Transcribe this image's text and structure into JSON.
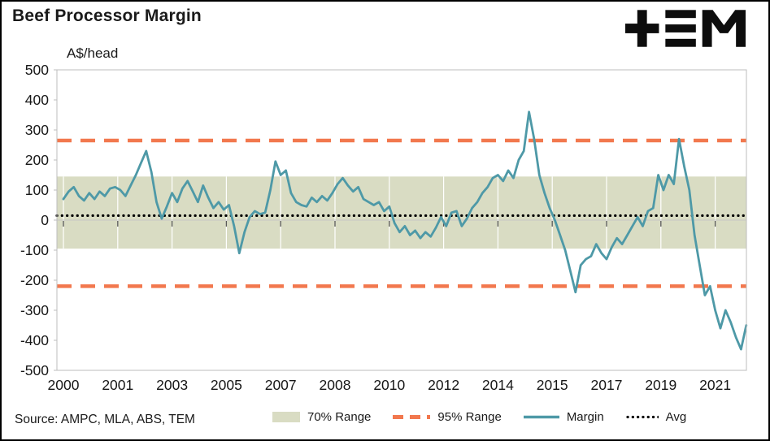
{
  "header": {
    "title": "Beef Processor Margin",
    "logo_name": "TEM"
  },
  "chart_data": {
    "type": "line",
    "title": "Beef Processor Margin",
    "ylabel": "A$/head",
    "ylim": [
      -500,
      500
    ],
    "yticks": [
      500,
      400,
      300,
      200,
      100,
      0,
      -100,
      -200,
      -300,
      -400,
      -500
    ],
    "xticks": [
      2000,
      2001,
      2003,
      2005,
      2007,
      2008,
      2010,
      2012,
      2014,
      2015,
      2017,
      2019,
      2021
    ],
    "x_tick_interval_years": 1.75,
    "grid": false,
    "legend_position": "bottom",
    "colors": {
      "band": "#d9dcc3",
      "range95": "#f2784e",
      "margin": "#4e99a7",
      "avg": "#000000"
    },
    "bands": [
      {
        "name": "70% Range",
        "from": -95,
        "to": 145,
        "color": "#d9dcc3"
      }
    ],
    "ref_lines": [
      {
        "name": "95% Range",
        "style": "dashed",
        "color": "#f2784e",
        "values": [
          265,
          -220
        ]
      },
      {
        "name": "Avg",
        "style": "dotted",
        "color": "#000000",
        "values": [
          15
        ]
      }
    ],
    "series": [
      {
        "name": "Margin",
        "color": "#4e99a7",
        "x_start": 2000,
        "x_step_years": 0.16667,
        "values": [
          70,
          95,
          110,
          80,
          65,
          90,
          70,
          95,
          80,
          105,
          110,
          100,
          80,
          115,
          150,
          190,
          230,
          160,
          60,
          5,
          45,
          90,
          60,
          105,
          130,
          95,
          60,
          115,
          75,
          40,
          60,
          35,
          50,
          -20,
          -110,
          -40,
          10,
          30,
          20,
          25,
          100,
          195,
          150,
          165,
          90,
          60,
          50,
          45,
          75,
          60,
          80,
          65,
          90,
          120,
          140,
          115,
          95,
          110,
          70,
          60,
          50,
          60,
          30,
          45,
          -10,
          -40,
          -20,
          -50,
          -35,
          -60,
          -40,
          -55,
          -25,
          10,
          -20,
          25,
          30,
          -20,
          5,
          40,
          60,
          90,
          110,
          140,
          150,
          130,
          165,
          140,
          200,
          230,
          360,
          270,
          150,
          90,
          40,
          0,
          -50,
          -100,
          -170,
          -240,
          -150,
          -130,
          -120,
          -80,
          -110,
          -130,
          -90,
          -60,
          -80,
          -50,
          -20,
          10,
          -20,
          30,
          40,
          150,
          100,
          150,
          120,
          270,
          180,
          100,
          -50,
          -150,
          -250,
          -220,
          -300,
          -360,
          -300,
          -340,
          -390,
          -430,
          -350
        ]
      }
    ],
    "legend": [
      {
        "label": "70% Range",
        "swatch": "band"
      },
      {
        "label": "95% Range",
        "swatch": "dashed"
      },
      {
        "label": "Margin",
        "swatch": "line"
      },
      {
        "label": "Avg",
        "swatch": "dotted"
      }
    ]
  },
  "footer": {
    "source": "Source: AMPC, MLA, ABS, TEM"
  }
}
